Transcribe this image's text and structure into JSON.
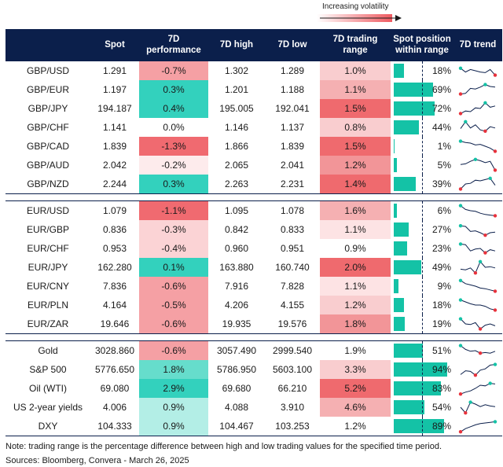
{
  "legend": {
    "label": "Increasing volatility"
  },
  "headers": {
    "name": "",
    "spot": "Spot",
    "perf_line1": "7D",
    "perf_line2": "performance",
    "high": "7D high",
    "low": "7D low",
    "range_line1": "7D trading",
    "range_line2": "range",
    "pos_line1": "Spot position",
    "pos_line2": "within range",
    "trend": "7D trend"
  },
  "colors": {
    "header_bg": "#0b1f4b",
    "bar": "#14c2a6",
    "pos_strong": "#33d1bd",
    "pos_mid": "#66ddcc",
    "pos_light": "#b3eee6",
    "neg_strong": "#f06a70",
    "neg_mid": "#f5a0a4",
    "neg_light": "#fbd3d5",
    "neg_faint": "#fdebec",
    "range_5": "#ef6a6e",
    "range_4": "#f29598",
    "range_3": "#f5b0b2",
    "range_2": "#f9cdcf",
    "range_1": "#fde3e4",
    "range_0": "#ffffff",
    "spark_line": "#0b1f4b",
    "spark_hi": "#14c2a6",
    "spark_lo": "#e8323c"
  },
  "groups": [
    {
      "rows": [
        {
          "name": "GBP/USD",
          "spot": "1.291",
          "perf": "-0.7%",
          "perf_level": "neg_mid",
          "high": "1.302",
          "low": "1.289",
          "range": "1.0%",
          "range_level": "range_2",
          "position": 0.18,
          "position_label": "18%",
          "trend": [
            0.7,
            0.4,
            0.6,
            0.5,
            0.4,
            0.35,
            0.6,
            0.15
          ],
          "trend_hi": 0,
          "trend_lo": 7
        },
        {
          "name": "GBP/EUR",
          "spot": "1.197",
          "perf": "0.3%",
          "perf_level": "pos_strong",
          "high": "1.201",
          "low": "1.188",
          "range": "1.1%",
          "range_level": "range_3",
          "position": 0.69,
          "position_label": "69%",
          "trend": [
            0.15,
            0.2,
            0.6,
            0.55,
            0.7,
            0.9,
            0.75,
            0.7
          ],
          "trend_hi": 5,
          "trend_lo": 0
        },
        {
          "name": "GBP/JPY",
          "spot": "194.187",
          "perf": "0.4%",
          "perf_level": "pos_strong",
          "high": "195.005",
          "low": "192.041",
          "range": "1.5%",
          "range_level": "range_5",
          "position": 0.72,
          "position_label": "72%",
          "trend": [
            0.1,
            0.3,
            0.25,
            0.55,
            0.5,
            0.95,
            0.6,
            0.7
          ],
          "trend_hi": 5,
          "trend_lo": 0
        },
        {
          "name": "GBP/CHF",
          "spot": "1.141",
          "perf": "0.0%",
          "perf_level": "none",
          "high": "1.146",
          "low": "1.137",
          "range": "0.8%",
          "range_level": "range_2",
          "position": 0.44,
          "position_label": "44%",
          "trend": [
            0.4,
            0.95,
            0.45,
            0.7,
            0.3,
            0.2,
            0.55,
            0.45
          ],
          "trend_hi": 1,
          "trend_lo": 5
        },
        {
          "name": "GBP/CAD",
          "spot": "1.839",
          "perf": "-1.3%",
          "perf_level": "neg_strong",
          "high": "1.866",
          "low": "1.839",
          "range": "1.5%",
          "range_level": "range_5",
          "position": 0.01,
          "position_label": "1%",
          "trend": [
            0.9,
            0.8,
            0.75,
            0.6,
            0.65,
            0.5,
            0.35,
            0.1
          ],
          "trend_hi": 0,
          "trend_lo": 7
        },
        {
          "name": "GBP/AUD",
          "spot": "2.042",
          "perf": "-0.2%",
          "perf_level": "neg_faint",
          "high": "2.065",
          "low": "2.041",
          "range": "1.2%",
          "range_level": "range_4",
          "position": 0.05,
          "position_label": "5%",
          "trend": [
            0.55,
            0.6,
            0.8,
            0.95,
            0.85,
            0.7,
            0.8,
            0.1
          ],
          "trend_hi": 3,
          "trend_lo": 7
        },
        {
          "name": "GBP/NZD",
          "spot": "2.244",
          "perf": "0.3%",
          "perf_level": "pos_strong",
          "high": "2.263",
          "low": "2.231",
          "range": "1.4%",
          "range_level": "range_5",
          "position": 0.39,
          "position_label": "39%",
          "trend": [
            0.1,
            0.5,
            0.55,
            0.8,
            0.75,
            0.85,
            0.95,
            0.4
          ],
          "trend_hi": 6,
          "trend_lo": 0
        }
      ]
    },
    {
      "rows": [
        {
          "name": "EUR/USD",
          "spot": "1.079",
          "perf": "-1.1%",
          "perf_level": "neg_strong",
          "high": "1.095",
          "low": "1.078",
          "range": "1.6%",
          "range_level": "range_3",
          "position": 0.06,
          "position_label": "6%",
          "trend": [
            0.9,
            0.6,
            0.5,
            0.45,
            0.3,
            0.2,
            0.15,
            0.1
          ],
          "trend_hi": 0,
          "trend_lo": 7
        },
        {
          "name": "EUR/GBP",
          "spot": "0.836",
          "perf": "-0.3%",
          "perf_level": "neg_light",
          "high": "0.842",
          "low": "0.833",
          "range": "1.1%",
          "range_level": "range_1",
          "position": 0.27,
          "position_label": "27%",
          "trend": [
            0.8,
            0.75,
            0.35,
            0.4,
            0.25,
            0.05,
            0.25,
            0.3
          ],
          "trend_hi": 0,
          "trend_lo": 5
        },
        {
          "name": "EUR/CHF",
          "spot": "0.953",
          "perf": "-0.4%",
          "perf_level": "neg_light",
          "high": "0.960",
          "low": "0.951",
          "range": "0.9%",
          "range_level": "range_0",
          "position": 0.23,
          "position_label": "23%",
          "trend": [
            0.85,
            0.8,
            0.3,
            0.45,
            0.5,
            0.15,
            0.4,
            0.3
          ],
          "trend_hi": 0,
          "trend_lo": 5
        },
        {
          "name": "EUR/JPY",
          "spot": "162.280",
          "perf": "0.1%",
          "perf_level": "pos_strong",
          "high": "163.880",
          "low": "160.740",
          "range": "2.0%",
          "range_level": "range_5",
          "position": 0.49,
          "position_label": "49%",
          "trend": [
            0.35,
            0.3,
            0.45,
            0.05,
            0.95,
            0.5,
            0.55,
            0.45
          ],
          "trend_hi": 4,
          "trend_lo": 3
        },
        {
          "name": "EUR/CNY",
          "spot": "7.836",
          "perf": "-0.6%",
          "perf_level": "neg_mid",
          "high": "7.916",
          "low": "7.828",
          "range": "1.1%",
          "range_level": "range_1",
          "position": 0.09,
          "position_label": "9%",
          "trend": [
            0.95,
            0.7,
            0.6,
            0.5,
            0.35,
            0.3,
            0.2,
            0.1
          ],
          "trend_hi": 0,
          "trend_lo": 7
        },
        {
          "name": "EUR/PLN",
          "spot": "4.164",
          "perf": "-0.5%",
          "perf_level": "neg_mid",
          "high": "4.206",
          "low": "4.155",
          "range": "1.2%",
          "range_level": "range_2",
          "position": 0.18,
          "position_label": "18%",
          "trend": [
            0.9,
            0.75,
            0.6,
            0.5,
            0.5,
            0.4,
            0.2,
            0.1
          ],
          "trend_hi": 0,
          "trend_lo": 7
        },
        {
          "name": "EUR/ZAR",
          "spot": "19.646",
          "perf": "-0.6%",
          "perf_level": "neg_mid",
          "high": "19.935",
          "low": "19.576",
          "range": "1.8%",
          "range_level": "range_4",
          "position": 0.19,
          "position_label": "19%",
          "trend": [
            0.9,
            0.5,
            0.45,
            0.6,
            0.1,
            0.4,
            0.5,
            0.35
          ],
          "trend_hi": 0,
          "trend_lo": 4
        }
      ]
    },
    {
      "rows": [
        {
          "name": "Gold",
          "spot": "3028.860",
          "perf": "-0.6%",
          "perf_level": "neg_mid",
          "high": "3057.490",
          "low": "2999.540",
          "range": "1.9%",
          "range_level": "range_0",
          "position": 0.51,
          "position_label": "51%",
          "trend": [
            0.9,
            0.6,
            0.45,
            0.5,
            0.3,
            0.35,
            0.3,
            0.45
          ],
          "trend_hi": 0,
          "trend_lo": 4
        },
        {
          "name": "S&P 500",
          "spot": "5776.650",
          "perf": "1.8%",
          "perf_level": "pos_mid",
          "high": "5786.950",
          "low": "5603.100",
          "range": "3.3%",
          "range_level": "range_2",
          "position": 0.94,
          "position_label": "94%",
          "trend": [
            0.1,
            0.4,
            0.35,
            0.05,
            0.45,
            0.55,
            0.85,
            0.9
          ],
          "trend_hi": 7,
          "trend_lo": 3
        },
        {
          "name": "Oil (WTI)",
          "spot": "69.080",
          "perf": "2.9%",
          "perf_level": "pos_strong",
          "high": "69.680",
          "low": "66.210",
          "range": "5.2%",
          "range_level": "range_5",
          "position": 0.83,
          "position_label": "83%",
          "trend": [
            0.05,
            0.2,
            0.3,
            0.5,
            0.75,
            0.7,
            0.9,
            0.85
          ],
          "trend_hi": 6,
          "trend_lo": 0
        },
        {
          "name": "US 2-year yields",
          "spot": "4.006",
          "perf": "0.9%",
          "perf_level": "pos_light",
          "high": "4.088",
          "low": "3.910",
          "range": "4.6%",
          "range_level": "range_3",
          "position": 0.54,
          "position_label": "54%",
          "trend": [
            0.5,
            0.05,
            0.9,
            0.75,
            0.55,
            0.7,
            0.6,
            0.55
          ],
          "trend_hi": 2,
          "trend_lo": 1
        },
        {
          "name": "DXY",
          "spot": "104.333",
          "perf": "0.9%",
          "perf_level": "pos_light",
          "high": "104.467",
          "low": "103.253",
          "range": "1.2%",
          "range_level": "range_0",
          "position": 0.89,
          "position_label": "89%",
          "trend": [
            0.05,
            0.3,
            0.45,
            0.6,
            0.7,
            0.75,
            0.8,
            0.85
          ],
          "trend_hi": 7,
          "trend_lo": 0
        }
      ]
    }
  ],
  "footer": {
    "note": "Note: trading range is the percentage difference between high and low trading values for the specified time period.",
    "sources": "Sources: Bloomberg, Convera - March 26, 2025"
  }
}
